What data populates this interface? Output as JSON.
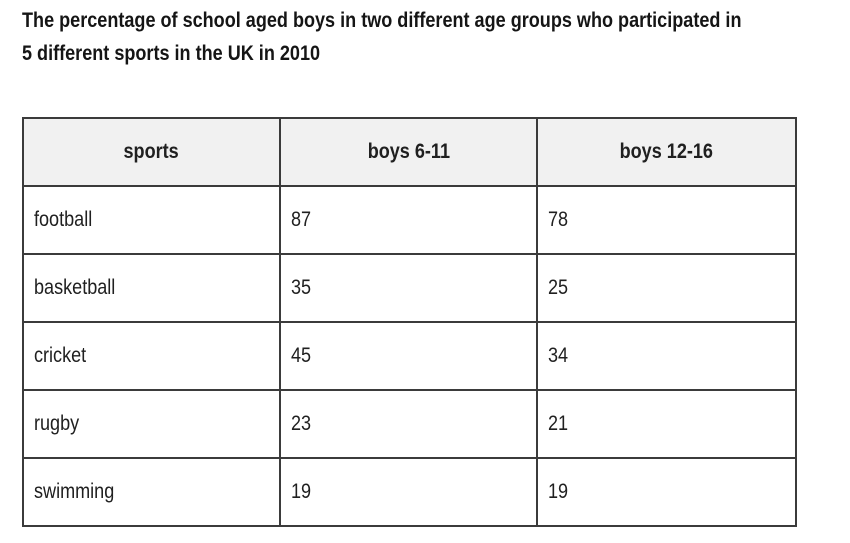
{
  "title": {
    "line1": "The percentage of school aged boys in two different age groups who participated in",
    "line2": "5 different sports in the UK in 2010"
  },
  "table": {
    "headers": [
      "sports",
      "boys 6-11",
      "boys 12-16"
    ],
    "rows": [
      [
        "football",
        "87",
        "78"
      ],
      [
        "basketball",
        "35",
        "25"
      ],
      [
        "cricket",
        "45",
        "34"
      ],
      [
        "rugby",
        "23",
        "21"
      ],
      [
        "swimming",
        "19",
        "19"
      ]
    ]
  },
  "chart_data": {
    "type": "table",
    "title": "The percentage of school aged boys in two different age groups who participated in 5 different sports in the UK in 2010",
    "categories": [
      "football",
      "basketball",
      "cricket",
      "rugby",
      "swimming"
    ],
    "series": [
      {
        "name": "boys 6-11",
        "values": [
          87,
          35,
          45,
          23,
          19
        ]
      },
      {
        "name": "boys 12-16",
        "values": [
          78,
          25,
          34,
          21,
          19
        ]
      }
    ]
  }
}
